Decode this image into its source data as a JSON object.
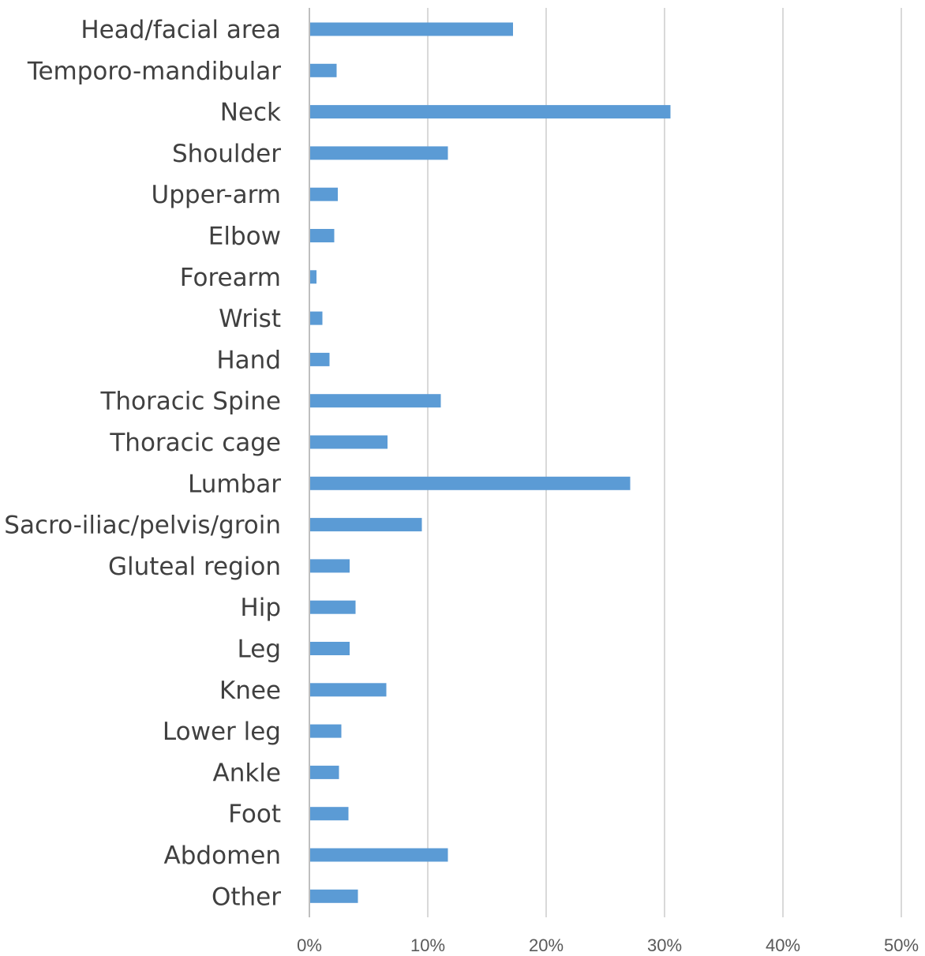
{
  "chart_data": {
    "type": "bar",
    "orientation": "horizontal",
    "title": "",
    "xlabel": "",
    "ylabel": "",
    "categories": [
      "Head/facial area",
      "Temporo-mandibular",
      "Neck",
      "Shoulder",
      "Upper-arm",
      "Elbow",
      "Forearm",
      "Wrist",
      "Hand",
      "Thoracic Spine",
      "Thoracic cage",
      "Lumbar",
      "Sacro-iliac/pelvis/groin",
      "Gluteal region",
      "Hip",
      "Leg",
      "Knee",
      "Lower leg",
      "Ankle",
      "Foot",
      "Abdomen",
      "Other"
    ],
    "values": [
      17.2,
      2.3,
      30.5,
      11.7,
      2.4,
      2.1,
      0.6,
      1.1,
      1.7,
      11.1,
      6.6,
      27.1,
      9.5,
      3.4,
      3.9,
      3.4,
      6.5,
      2.7,
      2.5,
      3.3,
      11.7,
      4.1
    ],
    "xlim": [
      0,
      50
    ],
    "x_ticks": [
      0,
      10,
      20,
      30,
      40,
      50
    ],
    "x_tick_labels": [
      "0%",
      "10%",
      "20%",
      "30%",
      "40%",
      "50%"
    ],
    "grid": true,
    "legend": "none",
    "bar_color": "#5b9bd5"
  }
}
